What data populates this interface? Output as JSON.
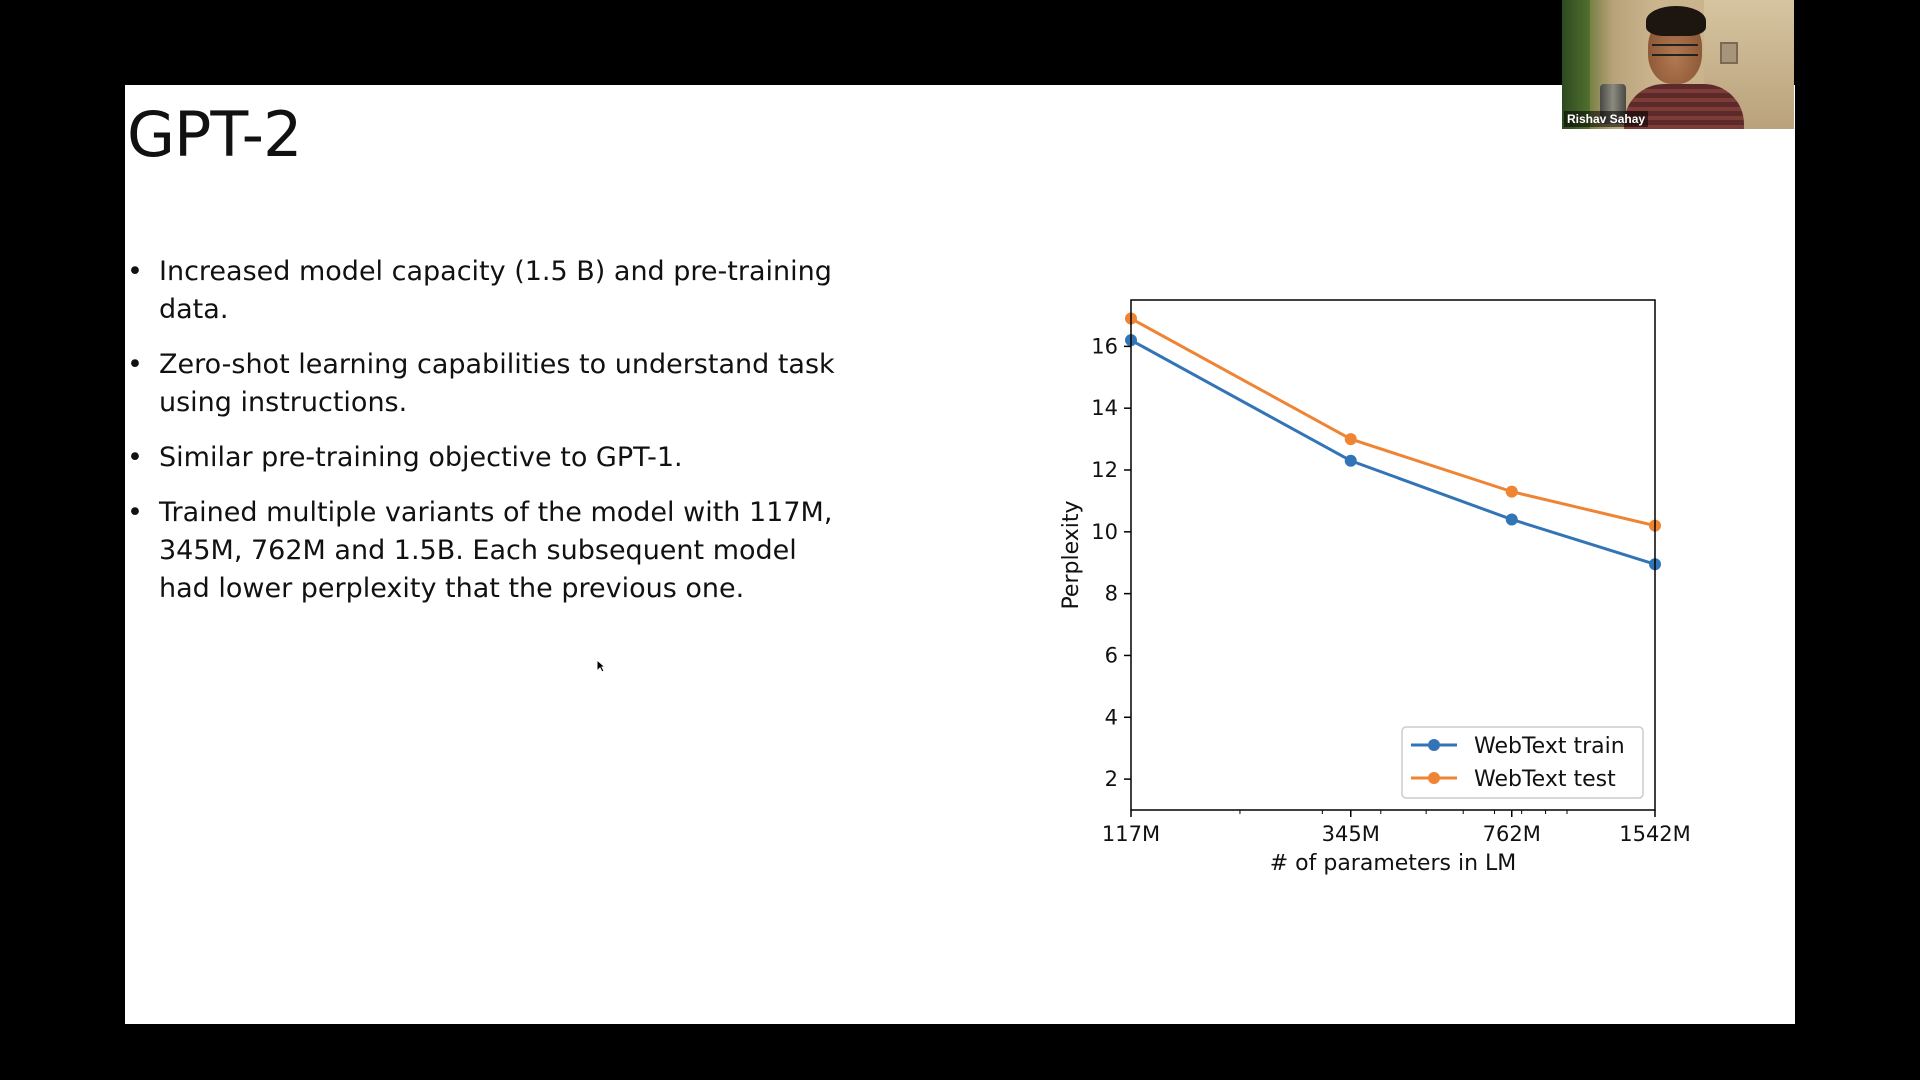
{
  "slide": {
    "title": "GPT-2",
    "bullets": [
      "Increased model capacity (1.5 B) and pre-training data.",
      "Zero-shot learning capabilities to understand task using instructions.",
      "Similar pre-training objective to GPT-1.",
      "Trained multiple variants of the model with 117M, 345M, 762M and 1.5B. Each subsequent model had lower perplexity that the previous one."
    ],
    "bullet_char": "•"
  },
  "video": {
    "participant_name": "Rishav Sahay"
  },
  "chart_data": {
    "type": "line",
    "title": "",
    "xlabel": "# of parameters in LM",
    "ylabel": "Perplexity",
    "x_scale": "log",
    "categories": [
      "117M",
      "345M",
      "762M",
      "1542M"
    ],
    "x": [
      117,
      345,
      762,
      1542
    ],
    "xlim": [
      117,
      1542
    ],
    "ylim": [
      1.0,
      17.5
    ],
    "yticks": [
      2,
      4,
      6,
      8,
      10,
      12,
      14,
      16
    ],
    "grid": false,
    "legend_position": "lower-right",
    "series": [
      {
        "name": "WebText train",
        "color": "#3274b5",
        "values": [
          16.2,
          12.3,
          10.4,
          8.95
        ]
      },
      {
        "name": "WebText test",
        "color": "#ee8434",
        "values": [
          16.9,
          13.0,
          11.3,
          10.2
        ]
      }
    ]
  }
}
